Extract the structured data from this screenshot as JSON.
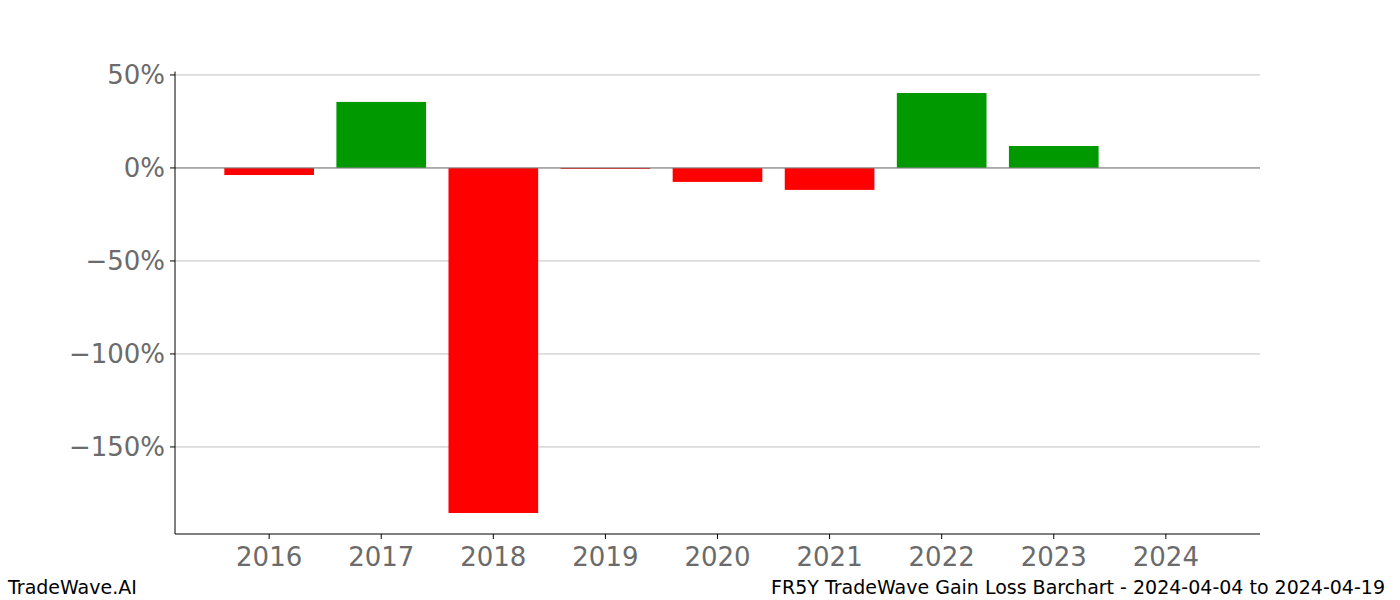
{
  "chart_data": {
    "type": "bar",
    "title": "FR5Y TradeWave Gain Loss Barchart - 2024-04-04 to 2024-04-19",
    "annotations": [
      "TradeWave.AI"
    ],
    "categories": [
      "2016",
      "2017",
      "2018",
      "2019",
      "2020",
      "2021",
      "2022",
      "2023",
      "2024"
    ],
    "values": [
      -3.8,
      35.5,
      -185.5,
      -0.5,
      -7.5,
      -11.8,
      40.3,
      11.8,
      0
    ],
    "colors": [
      "#ff0000",
      "#009900",
      "#ff0000",
      "#ff0000",
      "#ff0000",
      "#ff0000",
      "#009900",
      "#009900",
      "#009900"
    ],
    "ylim": [
      -196.8,
      51.8
    ],
    "yticks": [
      {
        "value": 50,
        "label": "50%"
      },
      {
        "value": 0,
        "label": "0%"
      },
      {
        "value": -50,
        "label": "−50%"
      },
      {
        "value": -100,
        "label": "−100%"
      },
      {
        "value": -150,
        "label": "−150%"
      }
    ],
    "grid": true
  }
}
